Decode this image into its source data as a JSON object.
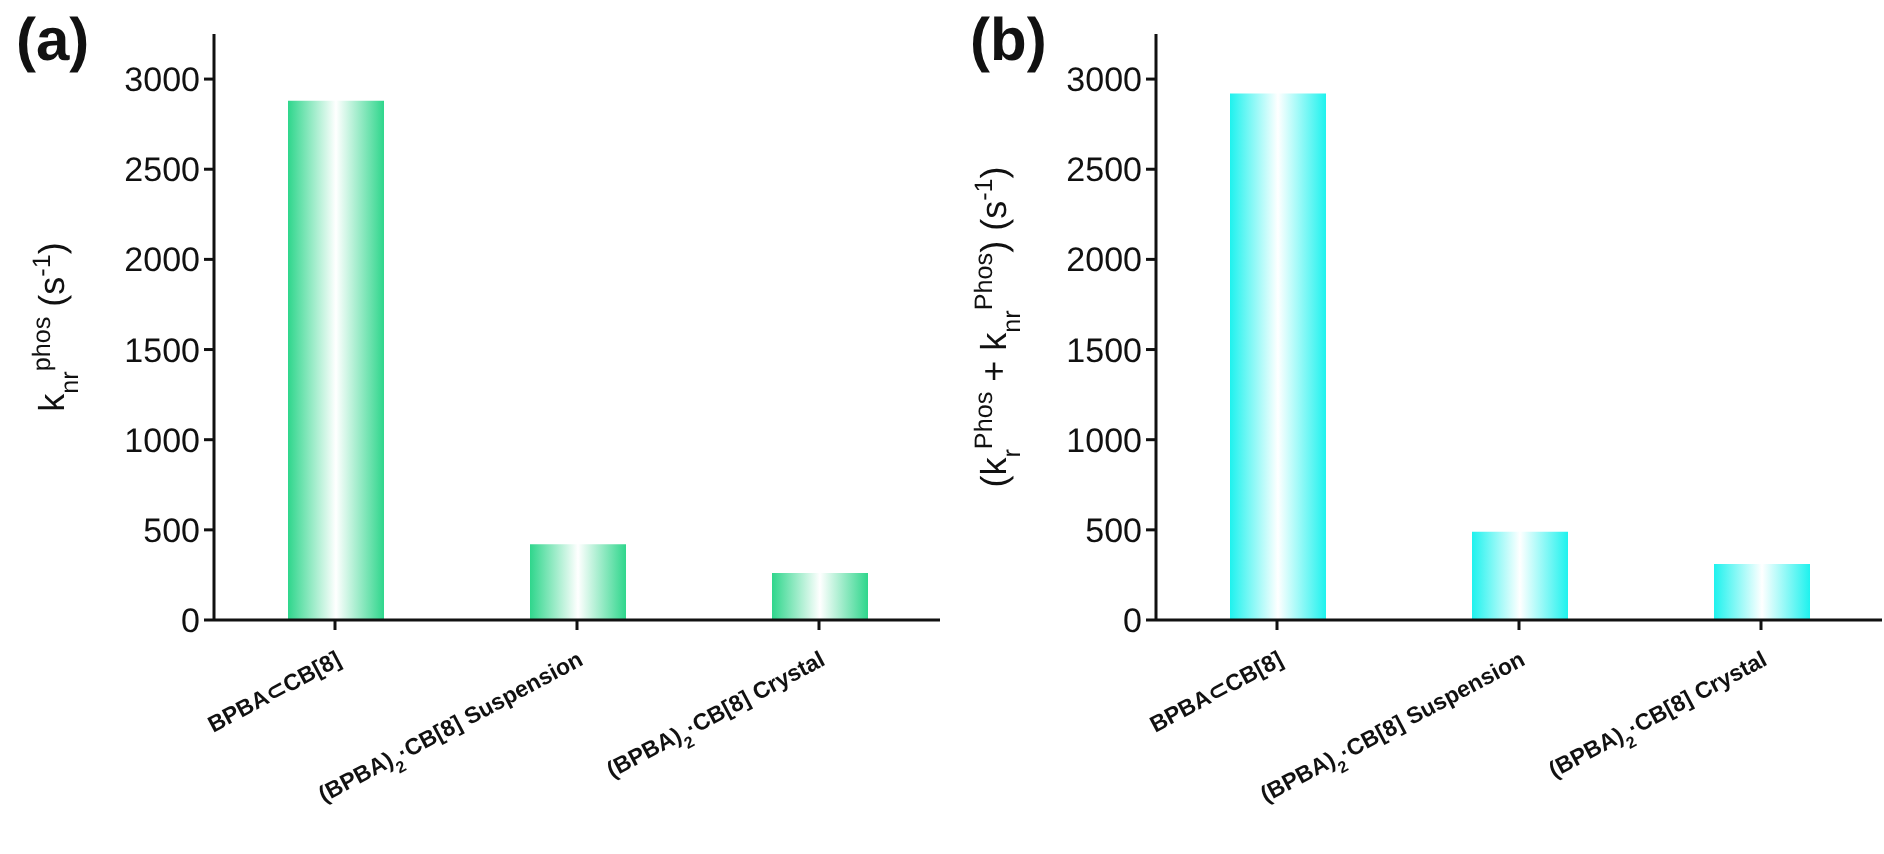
{
  "chart_data": [
    {
      "type": "bar",
      "title": "(a)",
      "ylabel": "k$_{nr}$$^{phos}$ (s$^{-1}$)",
      "categories": [
        "BPBA⊂CB[8]",
        "(BPBA)$_{2}$·CB[8] Suspension",
        "(BPBA)$_{2}$·CB[8] Crystal"
      ],
      "values": [
        2880,
        420,
        260
      ],
      "color": "#2fd68c",
      "ylim": [
        0,
        3250
      ],
      "yticks": [
        0,
        500,
        1000,
        1500,
        2000,
        2500,
        3000
      ]
    },
    {
      "type": "bar",
      "title": "(b)",
      "ylabel": "(k$_{r}$$^{Phos}$ + k$_{nr}$$^{Phos}$) (s$^{-1}$)",
      "categories": [
        "BPBA⊂CB[8]",
        "(BPBA)$_{2}$·CB[8] Suspension",
        "(BPBA)$_{2}$·CB[8] Crystal"
      ],
      "values": [
        2920,
        490,
        310
      ],
      "color": "#1ef2ee",
      "ylim": [
        0,
        3250
      ],
      "yticks": [
        0,
        500,
        1000,
        1500,
        2000,
        2500,
        3000
      ]
    }
  ]
}
